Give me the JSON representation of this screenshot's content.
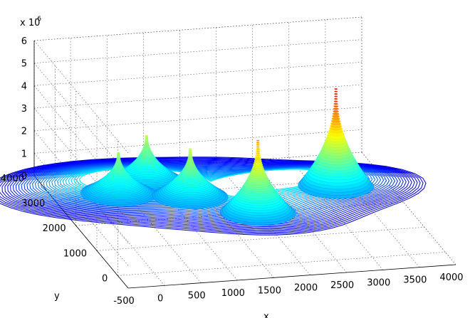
{
  "chart_data": {
    "type": "surface-contour3d",
    "title": "",
    "xlabel": "x",
    "ylabel": "y",
    "zlabel": "",
    "z_exponent_label": "x 10",
    "z_exponent_power": "-6",
    "xlim": [
      -500,
      4000
    ],
    "ylim": [
      -500,
      4000
    ],
    "zlim": [
      0,
      6
    ],
    "x_ticks": [
      "-500",
      "0",
      "500",
      "1000",
      "1500",
      "2000",
      "2500",
      "3000",
      "3500",
      "4000"
    ],
    "y_ticks": [
      "0",
      "1000",
      "2000",
      "3000",
      "4000"
    ],
    "z_ticks": [
      "0",
      "1",
      "2",
      "3",
      "4",
      "5",
      "6"
    ],
    "grid": true,
    "colormap": "jet",
    "peaks": [
      {
        "x": 400,
        "y": 3100,
        "height": 1.8
      },
      {
        "x": 900,
        "y": 3500,
        "height": 2.0
      },
      {
        "x": 1300,
        "y": 2800,
        "height": 2.1
      },
      {
        "x": 2000,
        "y": 2000,
        "height": 3.2
      },
      {
        "x": 3300,
        "y": 2800,
        "height": 4.3
      }
    ],
    "colors": {
      "low": "#1a1a8c",
      "mid": "#40c0e0",
      "high": "#f0e020",
      "top": "#c01010"
    }
  }
}
